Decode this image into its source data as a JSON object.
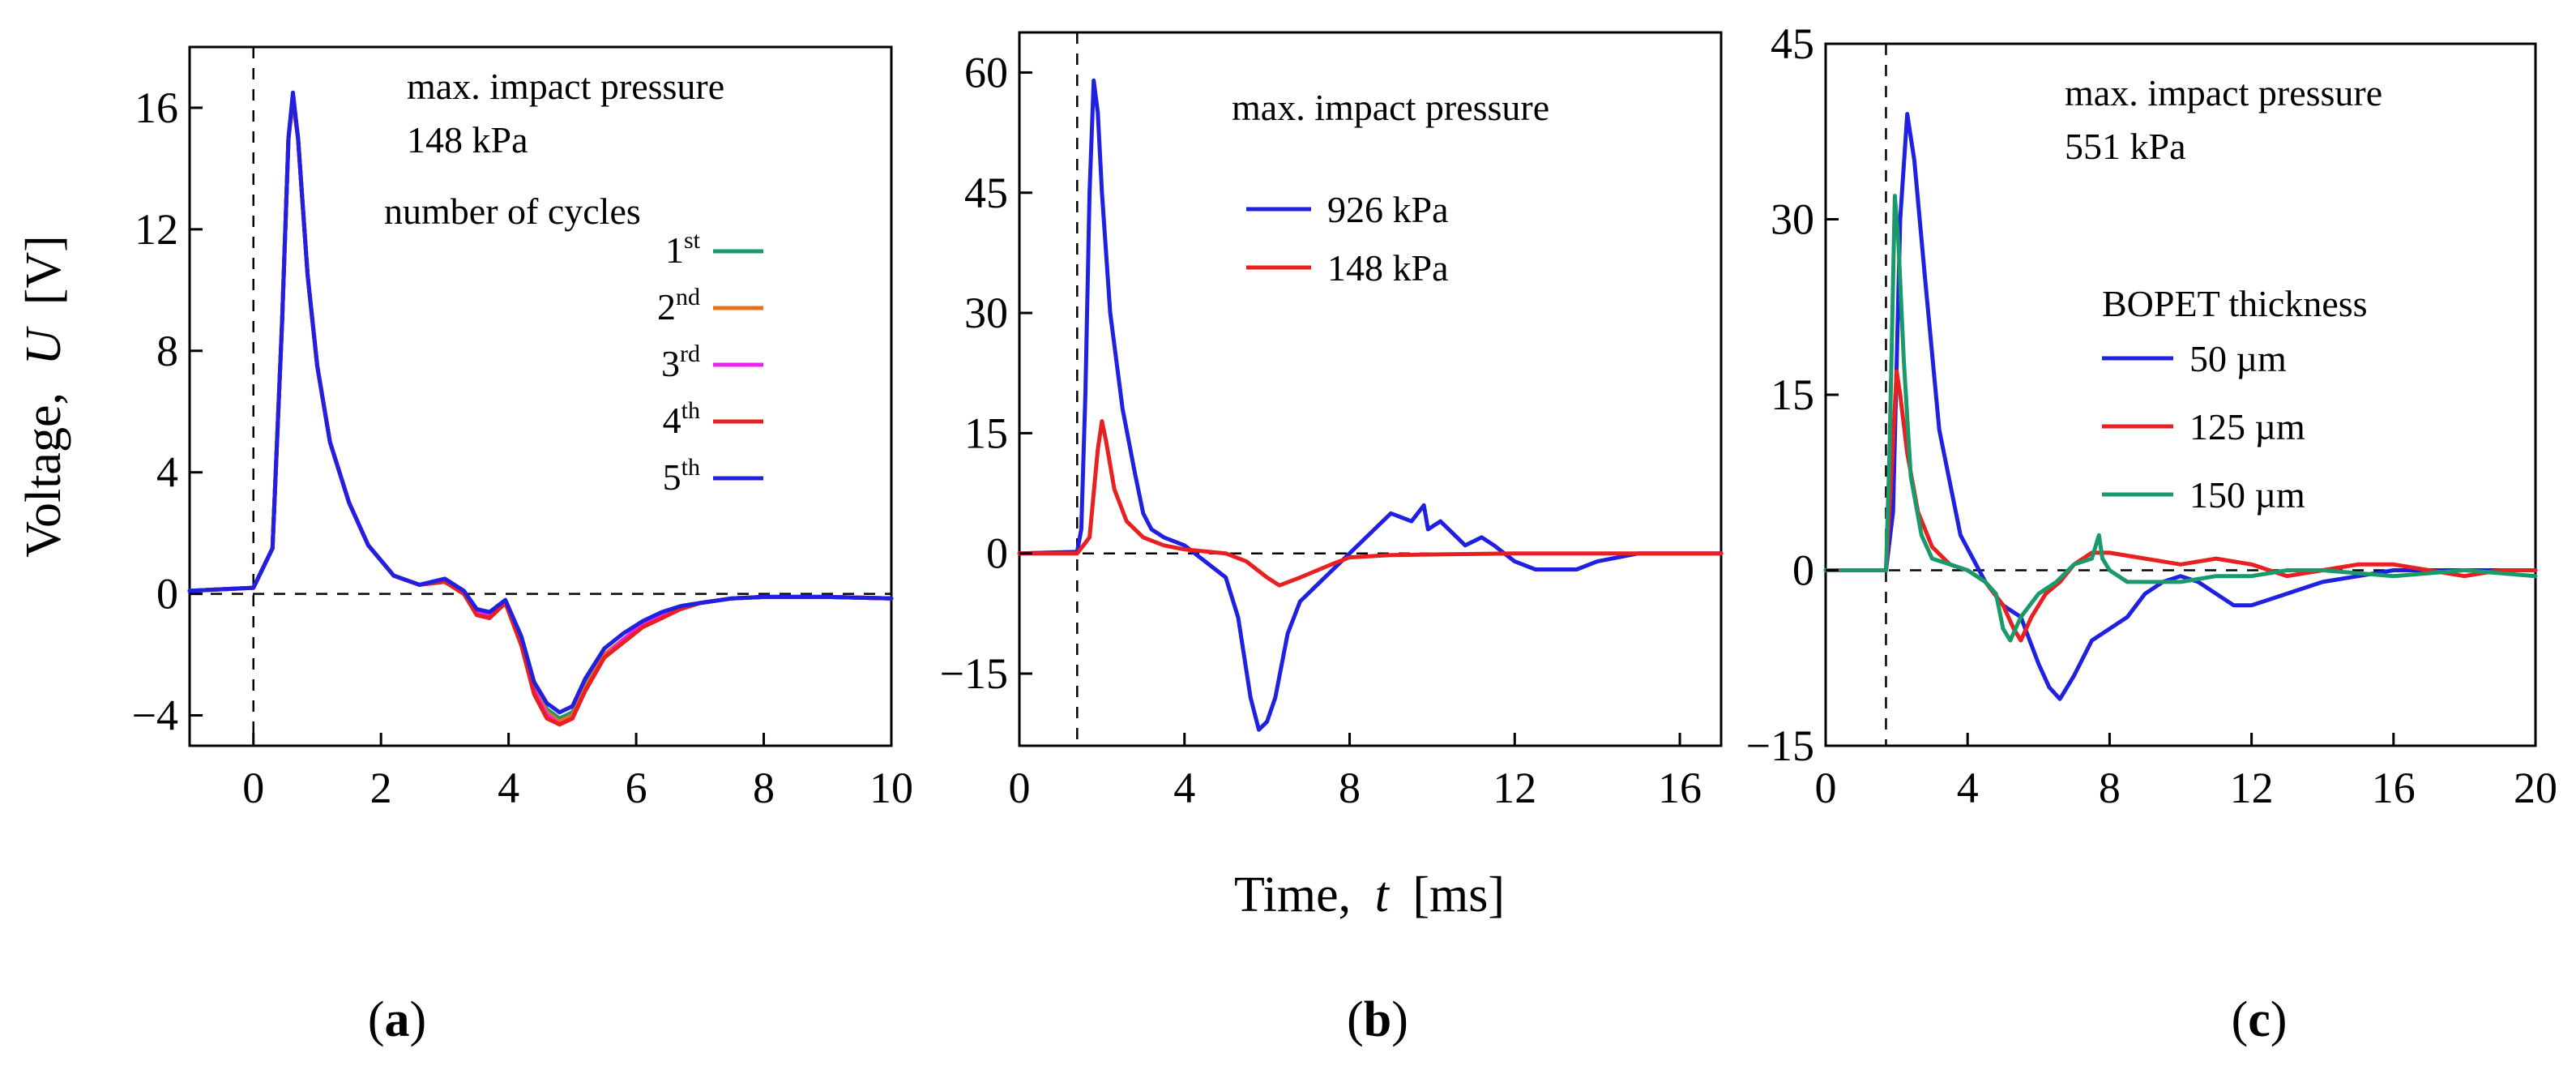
{
  "figure": {
    "ylabel_prefix": "Voltage,",
    "ylabel_var": "U",
    "ylabel_unit": "[V]",
    "xlabel_prefix": "Time,",
    "xlabel_var": "t",
    "xlabel_unit": "[ms]",
    "caption_a": "a",
    "caption_b": "b",
    "caption_c": "c"
  },
  "chart_data": [
    {
      "type": "line",
      "panel": "a",
      "title": "",
      "xlabel": "Time, t [ms]",
      "ylabel": "Voltage, U [V]",
      "xlim": [
        -1,
        10
      ],
      "ylim": [
        -5,
        18
      ],
      "xticks": [
        0,
        2,
        4,
        6,
        8,
        10
      ],
      "yticks": [
        -4,
        0,
        4,
        8,
        12,
        16
      ],
      "grid": false,
      "reference_lines": {
        "vertical_x": 0,
        "horizontal_y": 0
      },
      "annotation_line1": "max. impact pressure",
      "annotation_line2": "148 kPa",
      "legend_title": "number of cycles",
      "legend_placement": "right",
      "series": [
        {
          "name": "1",
          "sup": "st",
          "color": "#1a9a6a",
          "x": [
            -1,
            0,
            0.3,
            0.45,
            0.55,
            0.62,
            0.7,
            0.85,
            1.0,
            1.2,
            1.5,
            1.8,
            2.2,
            2.6,
            3.0,
            3.3,
            3.5,
            3.7,
            3.95,
            4.2,
            4.4,
            4.6,
            4.8,
            5.0,
            5.2,
            5.5,
            5.8,
            6.1,
            6.4,
            6.7,
            7.0,
            7.5,
            8.0,
            8.5,
            9.0,
            10.0
          ],
          "y": [
            0.1,
            0.2,
            1.5,
            9.0,
            15.0,
            16.2,
            15.0,
            10.5,
            7.5,
            5.0,
            3.0,
            1.6,
            0.6,
            0.3,
            0.4,
            0.0,
            -0.6,
            -0.7,
            -0.3,
            -1.5,
            -3.0,
            -3.8,
            -4.1,
            -3.9,
            -3.0,
            -2.0,
            -1.5,
            -1.0,
            -0.7,
            -0.5,
            -0.3,
            -0.15,
            -0.1,
            -0.1,
            -0.1,
            -0.15
          ]
        },
        {
          "name": "2",
          "sup": "nd",
          "color": "#e8701a",
          "x": [
            -1,
            0,
            0.3,
            0.45,
            0.55,
            0.62,
            0.7,
            0.85,
            1.0,
            1.2,
            1.5,
            1.8,
            2.2,
            2.6,
            3.0,
            3.3,
            3.5,
            3.7,
            3.95,
            4.2,
            4.4,
            4.6,
            4.8,
            5.0,
            5.2,
            5.5,
            5.8,
            6.1,
            6.4,
            6.7,
            7.0,
            7.5,
            8.0,
            8.5,
            9.0,
            10.0
          ],
          "y": [
            0.1,
            0.2,
            1.5,
            9.0,
            15.0,
            16.3,
            15.0,
            10.5,
            7.5,
            5.0,
            3.0,
            1.6,
            0.6,
            0.3,
            0.4,
            0.0,
            -0.6,
            -0.7,
            -0.3,
            -1.6,
            -3.1,
            -3.9,
            -4.2,
            -4.0,
            -3.1,
            -2.0,
            -1.5,
            -1.0,
            -0.7,
            -0.5,
            -0.3,
            -0.15,
            -0.1,
            -0.1,
            -0.1,
            -0.15
          ]
        },
        {
          "name": "3",
          "sup": "rd",
          "color": "#ee22ee",
          "x": [
            -1,
            0,
            0.3,
            0.45,
            0.55,
            0.62,
            0.7,
            0.85,
            1.0,
            1.2,
            1.5,
            1.8,
            2.2,
            2.6,
            3.0,
            3.3,
            3.5,
            3.7,
            3.95,
            4.2,
            4.4,
            4.6,
            4.8,
            5.0,
            5.2,
            5.5,
            5.8,
            6.1,
            6.4,
            6.7,
            7.0,
            7.5,
            8.0,
            8.5,
            9.0,
            10.0
          ],
          "y": [
            0.1,
            0.2,
            1.5,
            9.0,
            15.0,
            16.3,
            15.0,
            10.5,
            7.5,
            5.0,
            3.0,
            1.6,
            0.6,
            0.3,
            0.4,
            0.0,
            -0.6,
            -0.7,
            -0.3,
            -1.6,
            -3.2,
            -4.0,
            -4.3,
            -4.1,
            -3.2,
            -2.1,
            -1.5,
            -1.0,
            -0.7,
            -0.5,
            -0.3,
            -0.15,
            -0.1,
            -0.1,
            -0.1,
            -0.15
          ]
        },
        {
          "name": "4",
          "sup": "th",
          "color": "#e82020",
          "x": [
            -1,
            0,
            0.3,
            0.45,
            0.55,
            0.62,
            0.7,
            0.85,
            1.0,
            1.2,
            1.5,
            1.8,
            2.2,
            2.6,
            3.0,
            3.3,
            3.5,
            3.7,
            3.95,
            4.2,
            4.4,
            4.6,
            4.8,
            5.0,
            5.2,
            5.5,
            5.8,
            6.1,
            6.4,
            6.7,
            7.0,
            7.5,
            8.0,
            8.5,
            9.0,
            10.0
          ],
          "y": [
            0.1,
            0.2,
            1.5,
            9.0,
            15.0,
            16.4,
            15.0,
            10.5,
            7.5,
            5.0,
            3.0,
            1.6,
            0.6,
            0.3,
            0.4,
            0.0,
            -0.7,
            -0.8,
            -0.3,
            -1.7,
            -3.3,
            -4.1,
            -4.3,
            -4.1,
            -3.2,
            -2.1,
            -1.6,
            -1.1,
            -0.8,
            -0.5,
            -0.3,
            -0.15,
            -0.1,
            -0.1,
            -0.1,
            -0.15
          ]
        },
        {
          "name": "5",
          "sup": "th",
          "color": "#2020e0",
          "x": [
            -1,
            0,
            0.3,
            0.45,
            0.55,
            0.62,
            0.7,
            0.85,
            1.0,
            1.2,
            1.5,
            1.8,
            2.2,
            2.6,
            3.0,
            3.3,
            3.5,
            3.7,
            3.95,
            4.2,
            4.4,
            4.6,
            4.8,
            5.0,
            5.2,
            5.5,
            5.8,
            6.1,
            6.4,
            6.7,
            7.0,
            7.5,
            8.0,
            8.5,
            9.0,
            10.0
          ],
          "y": [
            0.1,
            0.2,
            1.5,
            9.0,
            15.0,
            16.5,
            15.0,
            10.5,
            7.5,
            5.0,
            3.0,
            1.6,
            0.6,
            0.3,
            0.5,
            0.1,
            -0.5,
            -0.6,
            -0.2,
            -1.4,
            -2.9,
            -3.6,
            -3.9,
            -3.7,
            -2.8,
            -1.8,
            -1.3,
            -0.9,
            -0.6,
            -0.4,
            -0.3,
            -0.15,
            -0.1,
            -0.1,
            -0.1,
            -0.15
          ]
        }
      ]
    },
    {
      "type": "line",
      "panel": "b",
      "title": "",
      "xlabel": "Time, t [ms]",
      "ylabel": "",
      "xlim": [
        0,
        17
      ],
      "ylim": [
        -24,
        65
      ],
      "xticks": [
        0,
        4,
        8,
        12,
        16
      ],
      "yticks": [
        -15,
        0,
        15,
        30,
        45,
        60
      ],
      "grid": false,
      "reference_lines": {
        "vertical_x": 1.4,
        "horizontal_y": 0
      },
      "annotation_line1": "max. impact pressure",
      "legend_placement": "upper-right",
      "series": [
        {
          "name": "926 kPa",
          "color": "#2020e0",
          "x": [
            0,
            1.4,
            1.5,
            1.6,
            1.7,
            1.8,
            1.9,
            2.0,
            2.2,
            2.5,
            2.8,
            3.0,
            3.2,
            3.5,
            4.0,
            4.5,
            5.0,
            5.3,
            5.6,
            5.8,
            6.0,
            6.2,
            6.5,
            6.8,
            7.2,
            7.8,
            8.2,
            8.6,
            9.0,
            9.5,
            9.8,
            9.9,
            10.2,
            10.8,
            11.2,
            11.5,
            12.0,
            12.5,
            13.0,
            13.5,
            14.0,
            15.0,
            16.0,
            17.0
          ],
          "y": [
            0,
            0.2,
            3,
            20,
            45,
            59,
            55,
            45,
            30,
            18,
            10,
            5,
            3,
            2,
            1,
            -1,
            -3,
            -8,
            -18,
            -22,
            -21,
            -18,
            -10,
            -6,
            -4,
            -1,
            1,
            3,
            5,
            4,
            6,
            3,
            4,
            1,
            2,
            1,
            -1,
            -2,
            -2,
            -2,
            -1,
            0,
            0,
            0
          ]
        },
        {
          "name": "148 kPa",
          "color": "#e82020",
          "x": [
            0,
            1.4,
            1.7,
            1.9,
            2.0,
            2.1,
            2.3,
            2.6,
            3.0,
            3.5,
            4.0,
            5.0,
            5.5,
            6.0,
            6.3,
            6.8,
            7.5,
            8.0,
            9.0,
            12.0,
            17.0
          ],
          "y": [
            0,
            0,
            2,
            13,
            16.5,
            14,
            8,
            4,
            2,
            1,
            0.5,
            0,
            -1,
            -3,
            -4,
            -3,
            -1.5,
            -0.5,
            -0.2,
            0,
            0
          ]
        }
      ]
    },
    {
      "type": "line",
      "panel": "c",
      "title": "",
      "xlabel": "Time, t [ms]",
      "ylabel": "",
      "xlim": [
        0,
        20
      ],
      "ylim": [
        -15,
        45
      ],
      "xticks": [
        0,
        4,
        8,
        12,
        16,
        20
      ],
      "yticks": [
        -15,
        0,
        15,
        30,
        45
      ],
      "grid": false,
      "reference_lines": {
        "vertical_x": 1.7,
        "horizontal_y": 0
      },
      "annotation_line1": "max. impact pressure",
      "annotation_line2": "551 kPa",
      "legend_title": "BOPET thickness",
      "legend_placement": "right",
      "series": [
        {
          "name": "50 µm",
          "color": "#2020e0",
          "x": [
            0,
            1.7,
            1.9,
            2.1,
            2.3,
            2.5,
            2.8,
            3.2,
            3.8,
            4.5,
            5.0,
            5.5,
            6.0,
            6.3,
            6.6,
            7.0,
            7.5,
            8.0,
            8.5,
            9.0,
            9.5,
            10.0,
            10.5,
            11.0,
            11.5,
            12.0,
            13.0,
            14.0,
            16.0,
            18.0,
            20.0
          ],
          "y": [
            0,
            0,
            5,
            30,
            39,
            35,
            25,
            12,
            3,
            -1,
            -3,
            -4,
            -8,
            -10,
            -11,
            -9,
            -6,
            -5,
            -4,
            -2,
            -1,
            -0.5,
            -1,
            -2,
            -3,
            -3,
            -2,
            -1,
            0,
            0,
            0
          ]
        },
        {
          "name": "125 µm",
          "color": "#e82020",
          "x": [
            0,
            1.7,
            1.85,
            2.0,
            2.1,
            2.3,
            2.6,
            3.0,
            3.5,
            4.0,
            4.5,
            5.0,
            5.3,
            5.5,
            5.8,
            6.2,
            6.6,
            7.0,
            7.5,
            8.0,
            9.0,
            10.0,
            11.0,
            12.0,
            13.0,
            14.0,
            15.0,
            16.0,
            17.0,
            18.0,
            19.0,
            20.0
          ],
          "y": [
            0,
            0,
            8,
            17,
            15,
            10,
            5,
            2,
            0.5,
            0,
            -1,
            -3,
            -5,
            -6,
            -4,
            -2,
            -1,
            0.5,
            1.5,
            1.5,
            1,
            0.5,
            1,
            0.5,
            -0.5,
            0,
            0.5,
            0.5,
            0,
            -0.5,
            0,
            0
          ]
        },
        {
          "name": "150 µm",
          "color": "#1a9a6a",
          "x": [
            0,
            1.7,
            1.8,
            1.95,
            2.05,
            2.2,
            2.4,
            2.7,
            3.0,
            3.5,
            4.0,
            4.5,
            4.8,
            5.0,
            5.2,
            5.5,
            6.0,
            6.5,
            7.0,
            7.5,
            7.7,
            7.8,
            8.0,
            8.5,
            9.0,
            10.0,
            11.0,
            12.0,
            13.0,
            14.0,
            16.0,
            18.0,
            20.0
          ],
          "y": [
            0,
            0,
            10,
            32,
            28,
            18,
            8,
            3,
            1,
            0.5,
            0,
            -1,
            -2,
            -5,
            -6,
            -4,
            -2,
            -1,
            0.5,
            1,
            3,
            1,
            0,
            -1,
            -1,
            -1,
            -0.5,
            -0.5,
            0,
            0,
            -0.5,
            0,
            -0.5
          ]
        }
      ]
    }
  ]
}
